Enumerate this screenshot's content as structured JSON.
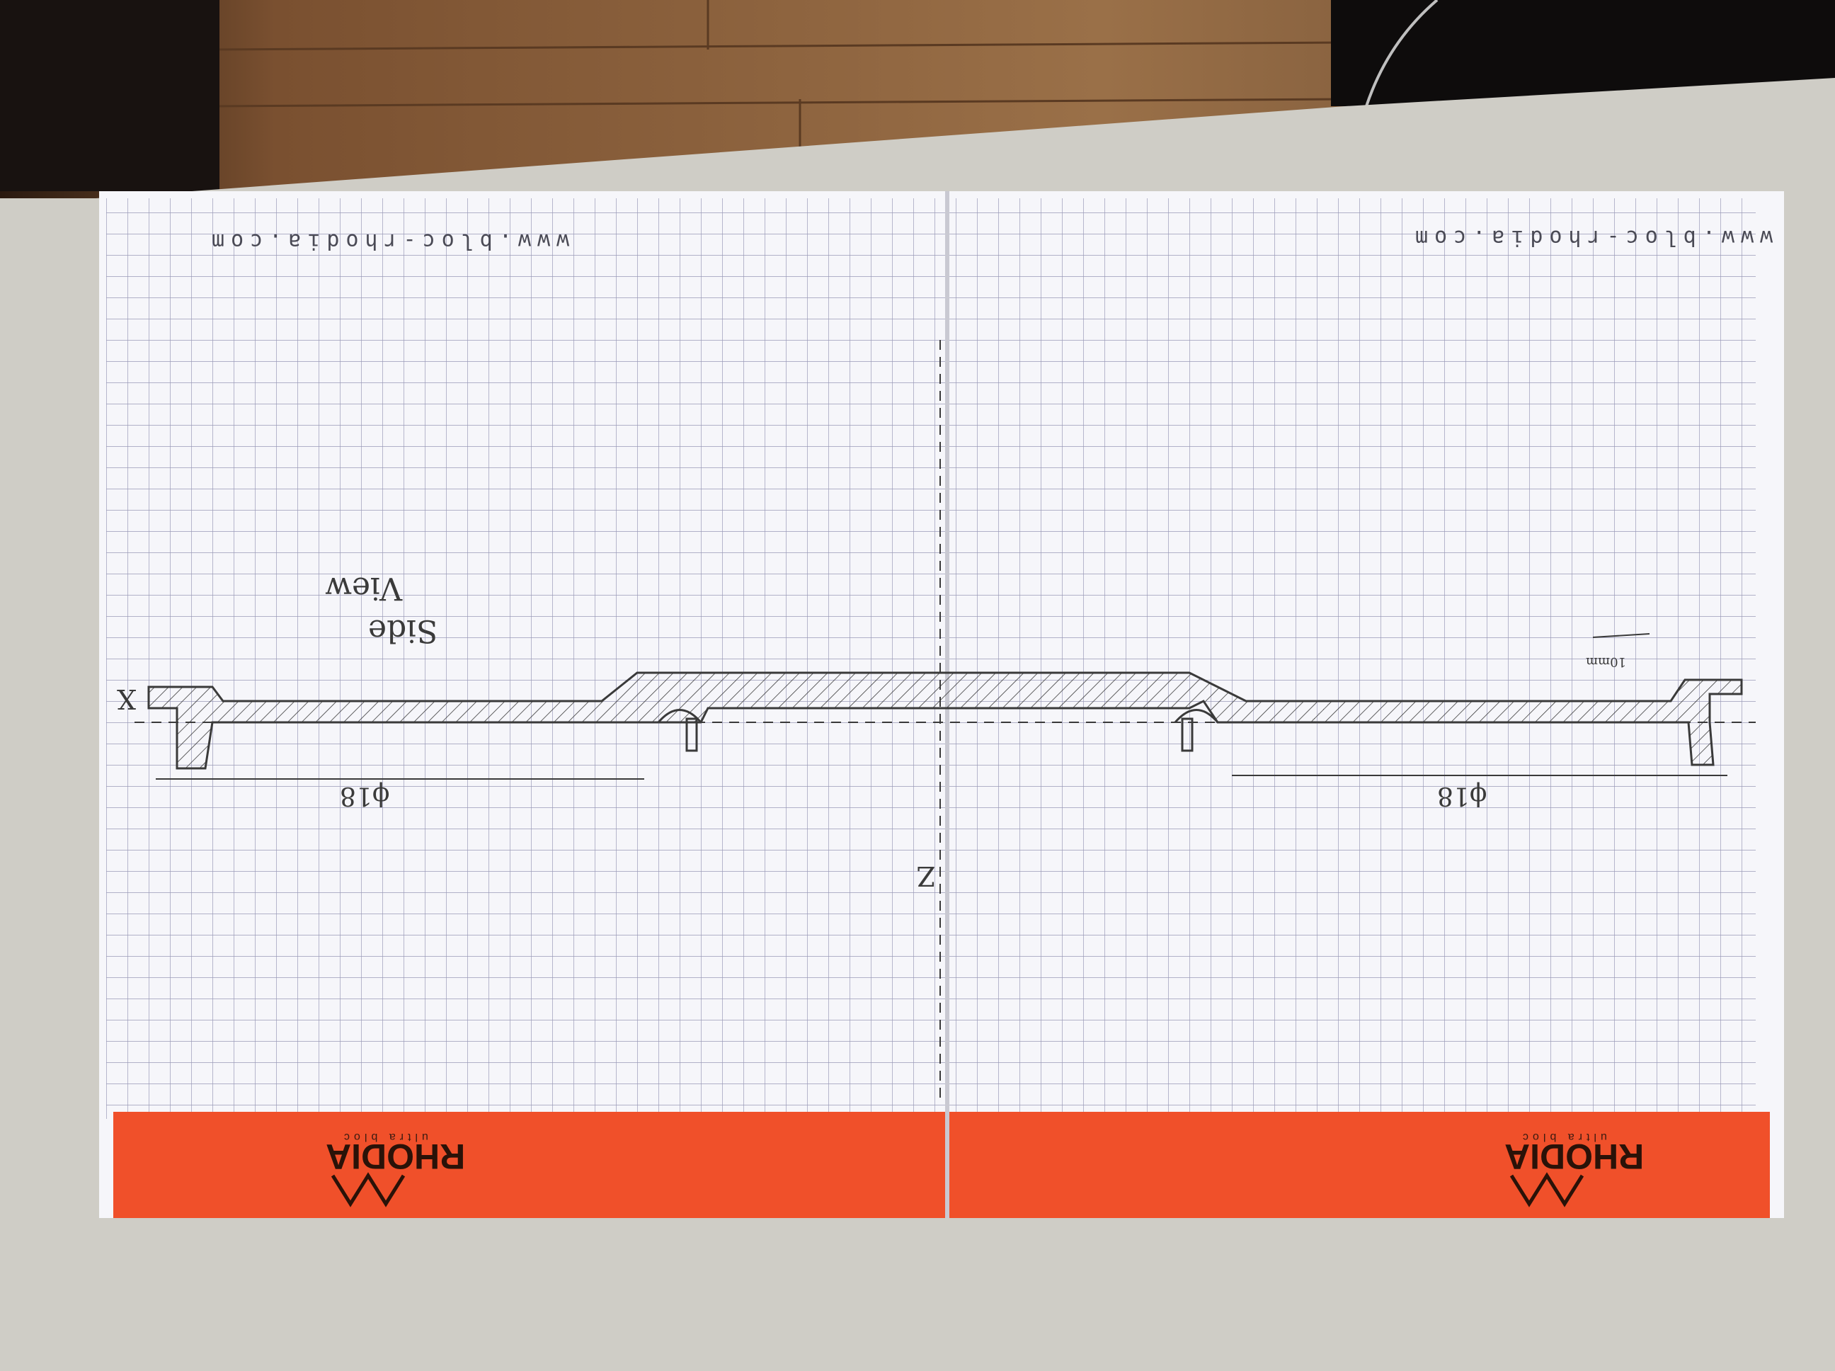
{
  "left_page": {
    "url": "www.bloc-rhodia.com",
    "brand": "RHODIA",
    "tagline": "ultra bloc",
    "note_line1": "Side",
    "note_line2": "View",
    "diameter_label": "ϕ18",
    "axis_label": "X"
  },
  "right_page": {
    "url": "www.bloc-rhodia.com",
    "brand": "RHODIA",
    "tagline": "ultra bloc",
    "diameter_label": "ϕ18",
    "scale_label": "10mm"
  },
  "center_axis_label": "Z",
  "colors": {
    "paper": "#f6f6fa",
    "grid": "#9a9ab8",
    "orange_band": "#f0502a",
    "table": "#cfcdc6",
    "floor": "#8a6440",
    "pencil": "#3a3a3a"
  }
}
